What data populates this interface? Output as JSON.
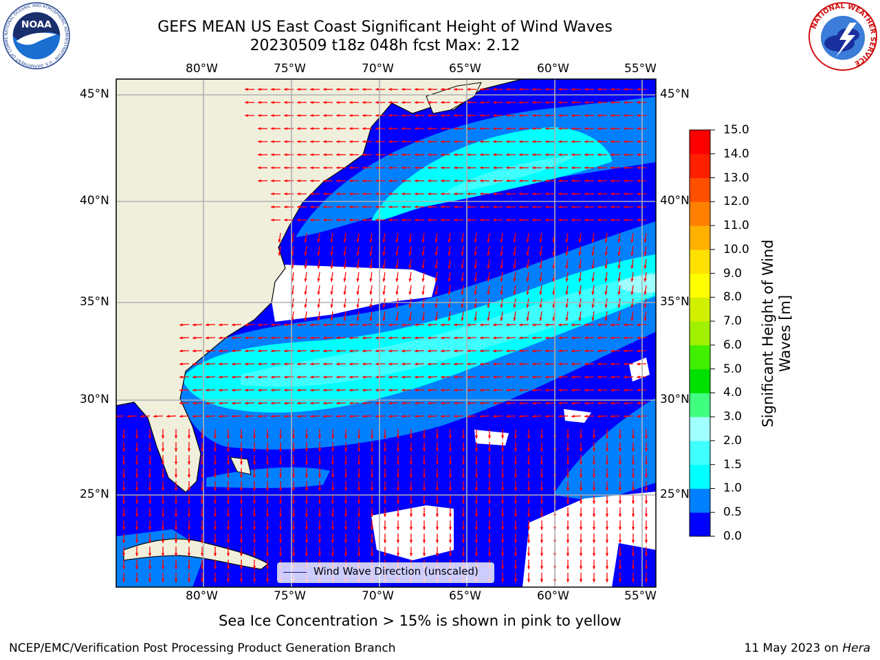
{
  "header": {
    "title_line1": "GEFS MEAN US East Coast Significant Height of Wind Waves",
    "title_line2": "20230509 t18z 048h fcst   Max: 2.12"
  },
  "logos": {
    "left_text": "NOAA",
    "left_ring_text": "NATIONAL OCEANIC AND ATMOSPHERIC ADMINISTRATION · U.S. DEPARTMENT OF COMMERCE",
    "right_ring_text": "NATIONAL WEATHER SERVICE"
  },
  "map": {
    "lon_labels": [
      "80°W",
      "75°W",
      "70°W",
      "65°W",
      "60°W",
      "55°W"
    ],
    "lat_labels": [
      "45°N",
      "40°N",
      "35°N",
      "30°N",
      "25°N"
    ],
    "lon_range": [
      -85,
      -54.5
    ],
    "lat_range": [
      20.5,
      46
    ],
    "land_color": "#efefdc",
    "arrow_color": "#ff0000",
    "grid": true,
    "legend": {
      "label": "Wind Wave Direction (unscaled)",
      "position": "bottom-center"
    }
  },
  "colorbar": {
    "label": "Significant Height of Wind Waves [m]",
    "ticks": [
      "0.0",
      "0.5",
      "1.0",
      "1.5",
      "2.0",
      "3.0",
      "4.0",
      "5.0",
      "6.0",
      "7.0",
      "8.0",
      "9.0",
      "10.0",
      "11.0",
      "12.0",
      "13.0",
      "14.0",
      "15.0"
    ],
    "colors": [
      "#0000ff",
      "#0080ff",
      "#00ffff",
      "#40ffff",
      "#a0ffff",
      "#40ff80",
      "#00e000",
      "#40f000",
      "#a0f000",
      "#d0f000",
      "#ffff00",
      "#ffe000",
      "#ffb000",
      "#ff8000",
      "#ff5000",
      "#ff2000",
      "#ff0000"
    ]
  },
  "footer": {
    "sea_ice_note": "Sea Ice Concentration > 15% is shown in pink to yellow",
    "left": "NCEP/EMC/Verification Post Processing Product Generation Branch",
    "date": "11 May 2023 on ",
    "host": "Hera"
  }
}
